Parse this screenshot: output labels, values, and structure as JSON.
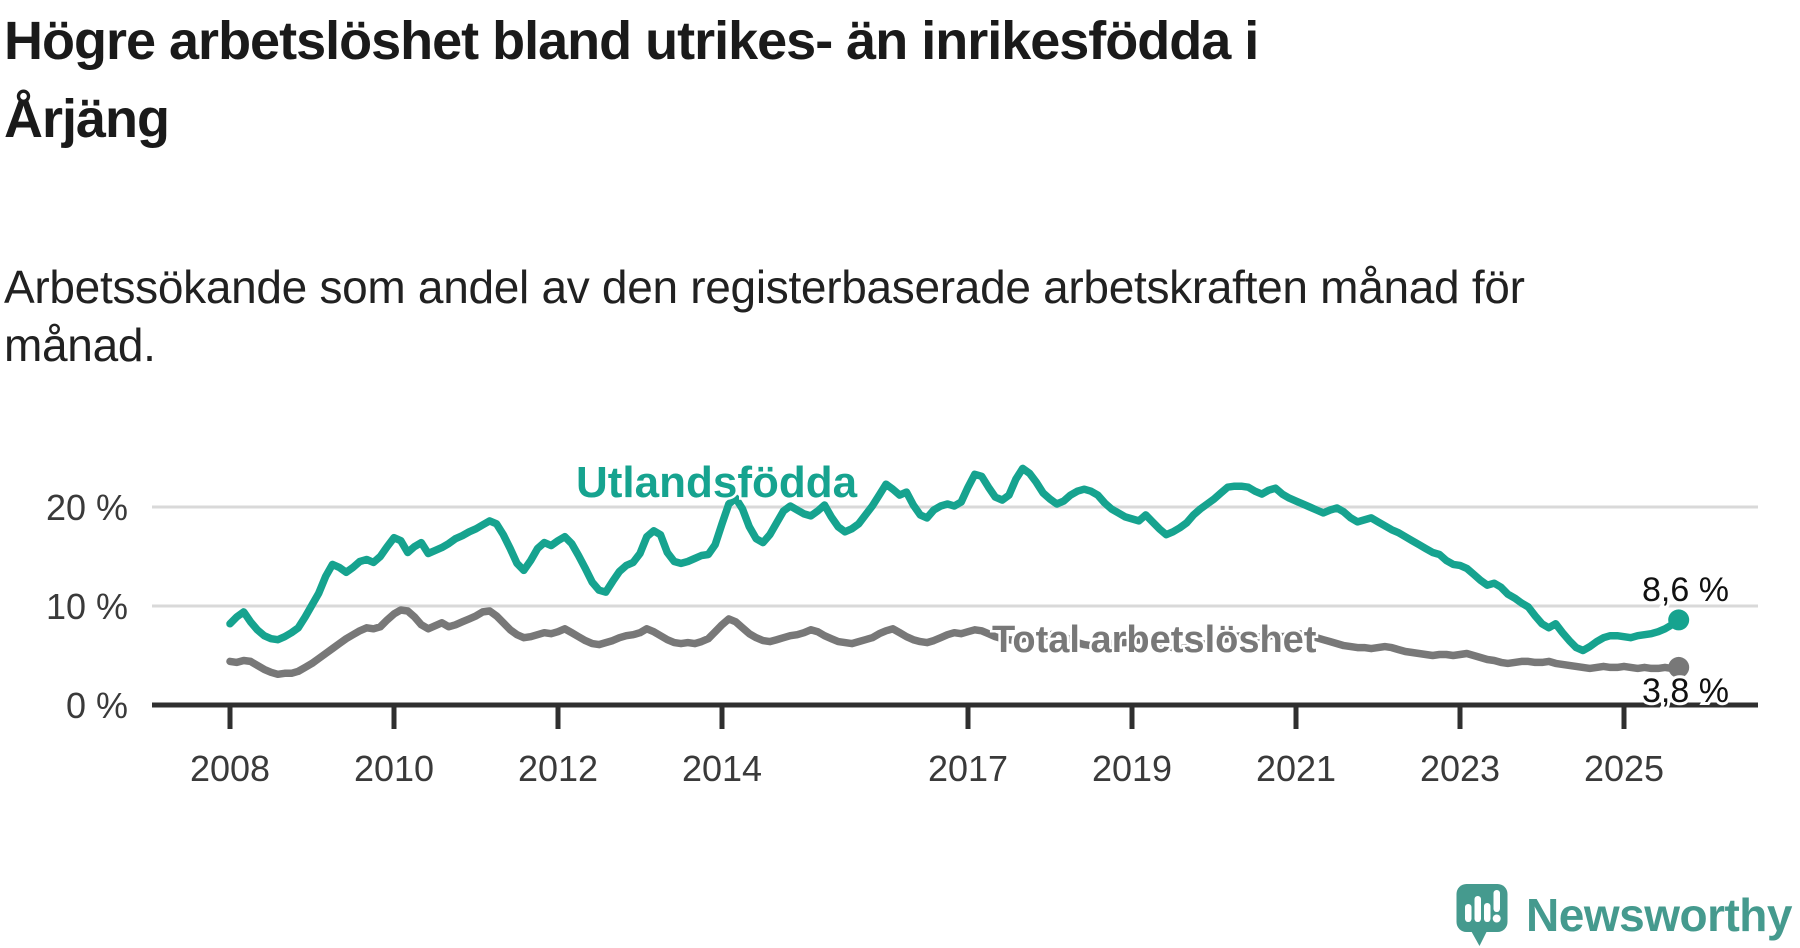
{
  "header": {
    "title": "Högre arbetslöshet bland utrikes- än inrikesfödda i Årjäng",
    "title_lines": [
      "Högre arbetslöshet bland utrikes- än inrikesfödda i",
      "Årjäng"
    ],
    "subtitle": "Arbetssökande som andel av den registerbaserade arbetskraften månad för månad.",
    "subtitle_lines": [
      "Arbetssökande som andel av den registerbaserade arbetskraften månad för",
      "månad."
    ]
  },
  "chart_data": {
    "type": "line",
    "title": "Högre arbetslöshet bland utrikes- än inrikesfödda i Årjäng",
    "subtitle": "Arbetssökande som andel av den registerbaserade arbetskraften månad för månad.",
    "unit": "%",
    "grid": true,
    "legend_position": "inline-labels",
    "x_axis": {
      "ticks": [
        2008,
        2010,
        2012,
        2014,
        2017,
        2019,
        2021,
        2023,
        2025
      ],
      "range_years": [
        2007.1,
        2026.3
      ]
    },
    "y_axis": {
      "ticks": [
        0,
        10,
        20
      ],
      "tick_labels": [
        "0 %",
        "10 %",
        "20 %"
      ],
      "range": [
        0,
        25
      ]
    },
    "series": [
      {
        "name": "Utlandsfödda",
        "slug": "utlandsfodda",
        "color": "#16a38f",
        "end_label": "8,6 %",
        "end_value": 8.6,
        "start_year": 2008,
        "start_month": 1,
        "cadence": "monthly",
        "values": [
          8.2,
          8.9,
          9.4,
          8.4,
          7.6,
          7.0,
          6.7,
          6.6,
          6.9,
          7.3,
          7.8,
          8.9,
          10.1,
          11.3,
          13.0,
          14.2,
          13.9,
          13.4,
          13.9,
          14.5,
          14.7,
          14.4,
          15.0,
          16.0,
          16.9,
          16.6,
          15.4,
          16.0,
          16.4,
          15.3,
          15.6,
          15.9,
          16.3,
          16.8,
          17.1,
          17.5,
          17.8,
          18.2,
          18.6,
          18.3,
          17.2,
          15.8,
          14.3,
          13.6,
          14.6,
          15.8,
          16.4,
          16.1,
          16.6,
          17.0,
          16.3,
          15.1,
          13.8,
          12.4,
          11.6,
          11.4,
          12.5,
          13.5,
          14.1,
          14.4,
          15.3,
          17.0,
          17.6,
          17.2,
          15.4,
          14.5,
          14.3,
          14.5,
          14.8,
          15.1,
          15.2,
          16.2,
          18.3,
          20.3,
          20.9,
          19.8,
          18.0,
          16.8,
          16.4,
          17.2,
          18.4,
          19.6,
          20.1,
          19.7,
          19.3,
          19.1,
          19.6,
          20.2,
          19.0,
          18.0,
          17.5,
          17.8,
          18.3,
          19.2,
          20.1,
          21.2,
          22.3,
          21.8,
          21.2,
          21.5,
          20.2,
          19.2,
          18.9,
          19.7,
          20.1,
          20.3,
          20.1,
          20.5,
          22.0,
          23.3,
          23.1,
          22.0,
          21.0,
          20.7,
          21.2,
          22.8,
          23.9,
          23.4,
          22.5,
          21.4,
          20.8,
          20.3,
          20.6,
          21.2,
          21.6,
          21.8,
          21.6,
          21.2,
          20.4,
          19.8,
          19.4,
          19.0,
          18.8,
          18.6,
          19.2,
          18.5,
          17.8,
          17.2,
          17.5,
          17.9,
          18.4,
          19.2,
          19.8,
          20.3,
          20.8,
          21.4,
          22.0,
          22.1,
          22.1,
          22.0,
          21.6,
          21.3,
          21.7,
          21.9,
          21.3,
          20.9,
          20.6,
          20.3,
          20.0,
          19.7,
          19.4,
          19.7,
          19.9,
          19.5,
          18.9,
          18.5,
          18.7,
          18.9,
          18.5,
          18.1,
          17.7,
          17.4,
          17.0,
          16.6,
          16.2,
          15.8,
          15.4,
          15.2,
          14.6,
          14.2,
          14.1,
          13.8,
          13.2,
          12.6,
          12.1,
          12.3,
          11.9,
          11.2,
          10.8,
          10.3,
          9.9,
          9.0,
          8.2,
          7.8,
          8.2,
          7.3,
          6.5,
          5.8,
          5.5,
          5.9,
          6.4,
          6.8,
          7.0,
          7.0,
          6.9,
          6.8,
          7.0,
          7.1,
          7.2,
          7.4,
          7.7,
          8.1,
          8.6
        ]
      },
      {
        "name": "Total arbetslöshet",
        "slug": "total-arbetsloshet",
        "color": "#787878",
        "end_label": "3,8 %",
        "end_value": 3.8,
        "start_year": 2008,
        "start_month": 1,
        "cadence": "monthly",
        "values": [
          4.4,
          4.3,
          4.5,
          4.4,
          4.0,
          3.6,
          3.3,
          3.1,
          3.2,
          3.2,
          3.4,
          3.8,
          4.2,
          4.7,
          5.2,
          5.7,
          6.2,
          6.7,
          7.1,
          7.5,
          7.8,
          7.7,
          7.9,
          8.6,
          9.2,
          9.6,
          9.5,
          8.9,
          8.1,
          7.7,
          8.0,
          8.3,
          7.9,
          8.1,
          8.4,
          8.7,
          9.0,
          9.4,
          9.5,
          9.0,
          8.3,
          7.6,
          7.1,
          6.8,
          6.9,
          7.1,
          7.3,
          7.2,
          7.4,
          7.7,
          7.3,
          6.9,
          6.5,
          6.2,
          6.1,
          6.3,
          6.5,
          6.8,
          7.0,
          7.1,
          7.3,
          7.7,
          7.4,
          7.0,
          6.6,
          6.3,
          6.2,
          6.3,
          6.2,
          6.4,
          6.7,
          7.4,
          8.1,
          8.7,
          8.4,
          7.8,
          7.2,
          6.8,
          6.5,
          6.4,
          6.6,
          6.8,
          7.0,
          7.1,
          7.3,
          7.6,
          7.4,
          7.0,
          6.7,
          6.4,
          6.3,
          6.2,
          6.4,
          6.6,
          6.8,
          7.2,
          7.5,
          7.7,
          7.3,
          6.9,
          6.6,
          6.4,
          6.3,
          6.5,
          6.8,
          7.1,
          7.3,
          7.2,
          7.4,
          7.6,
          7.5,
          7.2,
          6.9,
          6.7,
          6.6,
          6.5,
          6.7,
          6.9,
          7.0,
          6.9,
          7.1,
          7.2,
          6.9,
          6.6,
          6.3,
          6.1,
          6.0,
          5.9,
          6.0,
          6.2,
          6.3,
          6.3,
          6.4,
          6.6,
          6.4,
          6.2,
          6.0,
          5.9,
          5.8,
          5.7,
          5.8,
          6.0,
          6.1,
          6.2,
          6.4,
          6.6,
          6.7,
          6.9,
          7.0,
          7.0,
          6.9,
          6.9,
          7.0,
          7.0,
          6.9,
          7.0,
          7.1,
          7.2,
          7.0,
          6.8,
          6.6,
          6.4,
          6.2,
          6.0,
          5.9,
          5.8,
          5.8,
          5.7,
          5.8,
          5.9,
          5.8,
          5.6,
          5.4,
          5.3,
          5.2,
          5.1,
          5.0,
          5.1,
          5.1,
          5.0,
          5.1,
          5.2,
          5.0,
          4.8,
          4.6,
          4.5,
          4.3,
          4.2,
          4.3,
          4.4,
          4.4,
          4.3,
          4.3,
          4.4,
          4.2,
          4.1,
          4.0,
          3.9,
          3.8,
          3.7,
          3.8,
          3.9,
          3.8,
          3.8,
          3.9,
          3.8,
          3.7,
          3.8,
          3.7,
          3.7,
          3.8,
          3.7,
          3.8
        ]
      }
    ]
  },
  "branding": {
    "logo_text": "Newsworthy",
    "logo_color": "#459a8e",
    "logo_icon": "speech-bubble-bar-chart-exclamation"
  },
  "colors": {
    "background": "#ffffff",
    "title": "#1a1a1a",
    "gridline": "#d9d9d9",
    "axis": "#2f2f2f",
    "teal_series": "#16a38f",
    "gray_series": "#787878"
  }
}
